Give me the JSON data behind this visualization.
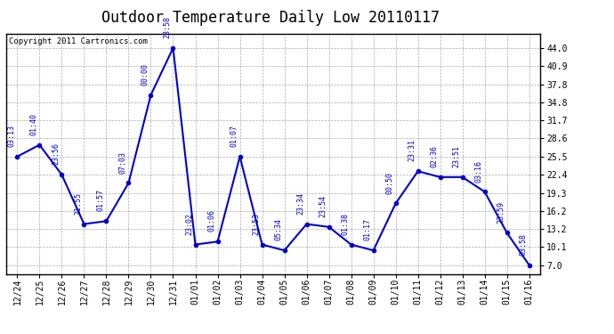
{
  "title": "Outdoor Temperature Daily Low 20110117",
  "copyright": "Copyright 2011 Cartronics.com",
  "x_labels": [
    "12/24",
    "12/25",
    "12/26",
    "12/27",
    "12/28",
    "12/29",
    "12/30",
    "12/31",
    "01/01",
    "01/02",
    "01/03",
    "01/04",
    "01/05",
    "01/06",
    "01/07",
    "01/08",
    "01/09",
    "01/10",
    "01/11",
    "01/12",
    "01/13",
    "01/14",
    "01/15",
    "01/16"
  ],
  "y_values": [
    25.5,
    27.5,
    22.4,
    14.0,
    14.5,
    21.0,
    36.0,
    44.0,
    10.5,
    11.0,
    25.5,
    10.5,
    9.5,
    14.0,
    13.5,
    10.5,
    9.5,
    17.5,
    23.0,
    22.0,
    22.0,
    19.5,
    12.5,
    7.0
  ],
  "time_labels": [
    "03:13",
    "01:40",
    "23:56",
    "21:55",
    "01:57",
    "07:03",
    "00:00",
    "23:58",
    "23:02",
    "01:06",
    "01:07",
    "23:53",
    "05:34",
    "23:34",
    "23:54",
    "01:38",
    "01:17",
    "00:50",
    "23:31",
    "02:36",
    "23:51",
    "03:16",
    "23:59",
    "03:58"
  ],
  "y_ticks": [
    7.0,
    10.1,
    13.2,
    16.2,
    19.3,
    22.4,
    25.5,
    28.6,
    31.7,
    34.8,
    37.8,
    40.9,
    44.0
  ],
  "line_color": "#0000cc",
  "bg_color": "#ffffff",
  "grid_color": "#aaaaaa",
  "title_fontsize": 12,
  "tick_fontsize": 7,
  "annotation_fontsize": 6,
  "copyright_fontsize": 6.5,
  "ymin": 5.5,
  "ymax": 46.5
}
